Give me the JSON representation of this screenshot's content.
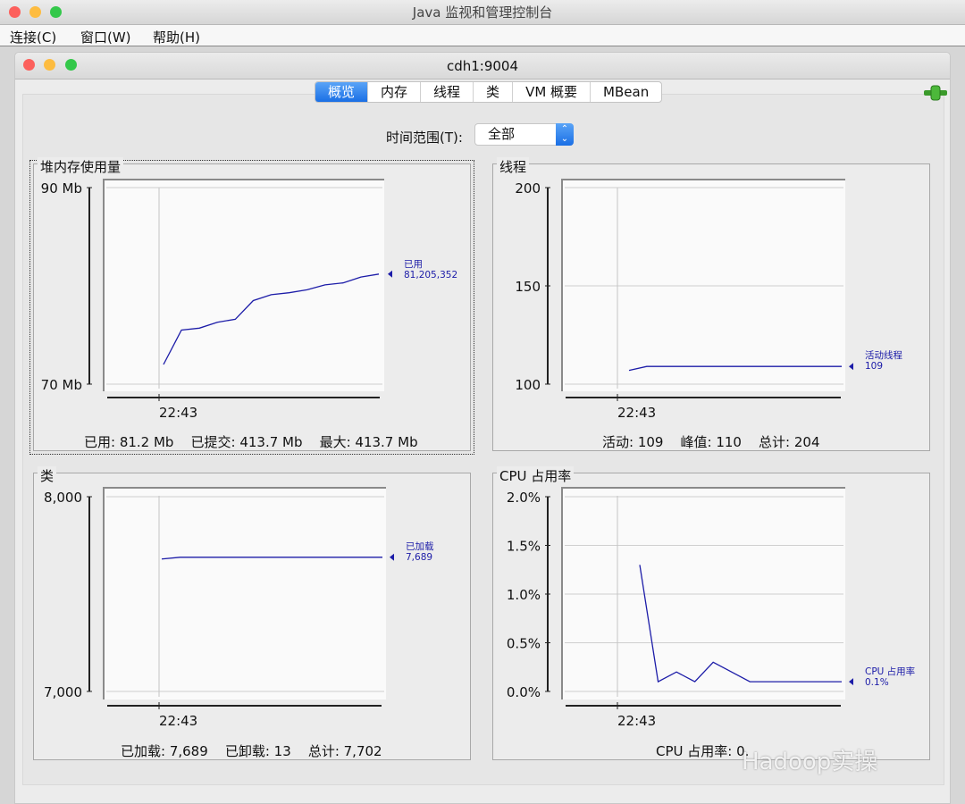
{
  "app": {
    "title": "Java 监视和管理控制台"
  },
  "menu": [
    "连接(C)",
    "窗口(W)",
    "帮助(H)"
  ],
  "window": {
    "title": "cdh1:9004"
  },
  "tabs": [
    {
      "label": "概览",
      "active": true
    },
    {
      "label": "内存"
    },
    {
      "label": "线程"
    },
    {
      "label": "类"
    },
    {
      "label": "VM 概要"
    },
    {
      "label": "MBean"
    }
  ],
  "connection_icon": "plug-connected-icon",
  "time_range": {
    "label": "时间范围(T):",
    "value": "全部"
  },
  "colors": {
    "series": "#1c1ca8",
    "accent": "#1a6fe5"
  },
  "panels": {
    "heap": {
      "title": "堆内存使用量",
      "summary": "已用: 81.2 Mb    已提交: 413.7 Mb    最大: 413.7 Mb"
    },
    "threads": {
      "title": "线程",
      "summary": "活动: 109    峰值: 110    总计: 204"
    },
    "classes": {
      "title": "类",
      "summary": "已加载: 7,689    已卸载: 13    总计: 7,702"
    },
    "cpu": {
      "title": "CPU 占用率",
      "summary": "CPU 占用率: 0."
    }
  },
  "chart_data": [
    {
      "type": "line",
      "id": "heap",
      "yticks": [
        "90 Mb",
        "70 Mb"
      ],
      "ylim": [
        70,
        90
      ],
      "xtick": "22:43",
      "legend": {
        "name": "已用",
        "value": "81,205,352"
      },
      "values": [
        72.0,
        75.5,
        75.7,
        76.3,
        76.6,
        78.5,
        79.1,
        79.3,
        79.6,
        80.1,
        80.3,
        80.9,
        81.2
      ]
    },
    {
      "type": "line",
      "id": "threads",
      "yticks": [
        "200",
        "150",
        "100"
      ],
      "ylim": [
        100,
        200
      ],
      "xtick": "22:43",
      "legend": {
        "name": "活动线程",
        "value": "109"
      },
      "values": [
        107,
        109,
        109,
        109,
        109,
        109,
        109,
        109,
        109,
        109,
        109,
        109,
        109
      ]
    },
    {
      "type": "line",
      "id": "classes",
      "yticks": [
        "8,000",
        "7,000"
      ],
      "ylim": [
        7000,
        8000
      ],
      "xtick": "22:43",
      "legend": {
        "name": "已加载",
        "value": "7,689"
      },
      "values": [
        7680,
        7689,
        7689,
        7689,
        7689,
        7689,
        7689,
        7689,
        7689,
        7689,
        7689,
        7689,
        7689
      ]
    },
    {
      "type": "line",
      "id": "cpu",
      "yticks": [
        "2.0%",
        "1.5%",
        "1.0%",
        "0.5%",
        "0.0%"
      ],
      "ylim": [
        0,
        2.0
      ],
      "xtick": "22:43",
      "legend": {
        "name": "CPU 占用率",
        "value": "0.1%"
      },
      "values": [
        1.3,
        0.1,
        0.2,
        0.1,
        0.3,
        0.2,
        0.1,
        0.1,
        0.1,
        0.1,
        0.1,
        0.1
      ]
    }
  ],
  "watermark": "Hadoop实操"
}
